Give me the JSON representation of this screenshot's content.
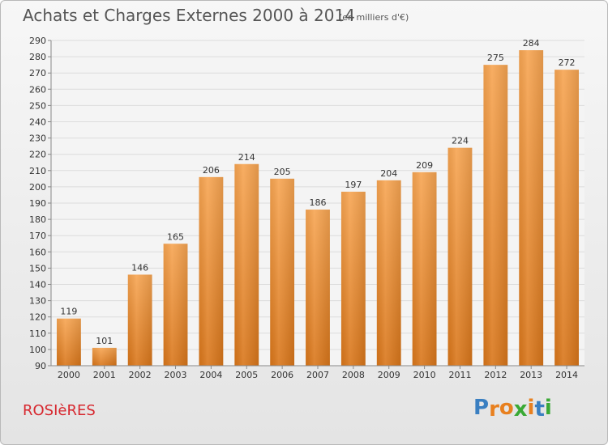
{
  "header": {
    "title": "Achats et Charges Externes 2000 à 2014",
    "subtitle": "(en milliers d'€)"
  },
  "footer": {
    "commune": "ROSIèRES",
    "logo_letters": [
      "P",
      "r",
      "o",
      "x",
      "i",
      "t",
      "i"
    ],
    "logo_colors": [
      "#3a7fc1",
      "#e8801f",
      "#e8801f",
      "#3aa935",
      "#e8801f",
      "#3a7fc1",
      "#3aa935"
    ]
  },
  "chart_data": {
    "type": "bar",
    "title": "Achats et Charges Externes 2000 à 2014",
    "subtitle": "(en milliers d'€)",
    "categories": [
      "2000",
      "2001",
      "2002",
      "2003",
      "2004",
      "2005",
      "2006",
      "2007",
      "2008",
      "2009",
      "2010",
      "2011",
      "2012",
      "2013",
      "2014"
    ],
    "values": [
      119,
      101,
      146,
      165,
      206,
      214,
      205,
      186,
      197,
      204,
      209,
      224,
      275,
      284,
      272
    ],
    "ylim": [
      90,
      290
    ],
    "ytick_step": 10,
    "grid": true,
    "bar_color_top": "#f7a552",
    "bar_color_bottom": "#d9761a",
    "data_labels": true
  }
}
